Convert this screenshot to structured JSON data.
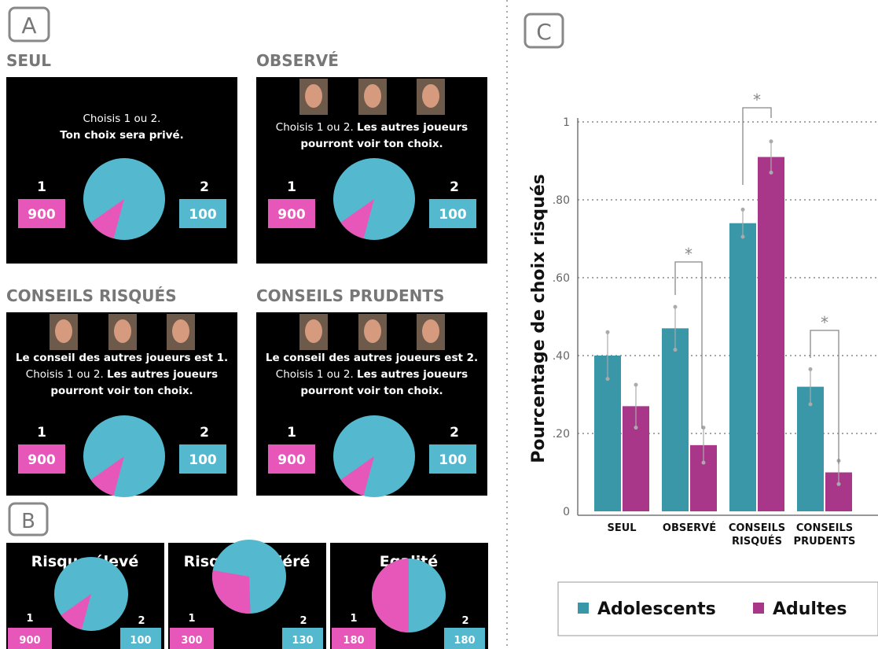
{
  "panel_labels": {
    "a": "A",
    "b": "B",
    "c": "C"
  },
  "screens": [
    {
      "title": "SEUL",
      "lines": [
        [
          {
            "text": "Choisis 1 ou 2.",
            "bold": false
          }
        ],
        [
          {
            "text": "Ton choix sera privé.",
            "bold": true
          }
        ]
      ],
      "left_label": "1",
      "left_value": 900,
      "right_label": "2",
      "right_value": 100
    },
    {
      "title": "OBSERVÉ",
      "lines": [
        [
          {
            "text": "Choisis 1 ou 2. ",
            "bold": false
          },
          {
            "text": "Les autres joueurs",
            "bold": true
          }
        ],
        [
          {
            "text": "pourront voir ton choix.",
            "bold": true
          }
        ]
      ],
      "left_label": "1",
      "left_value": 900,
      "right_label": "2",
      "right_value": 100
    },
    {
      "title": "CONSEILS RISQUÉS",
      "lines": [
        [
          {
            "text": "Le conseil des autres joueurs est 1.",
            "bold": true
          }
        ],
        [
          {
            "text": "Choisis 1 ou 2. ",
            "bold": false
          },
          {
            "text": "Les autres joueurs",
            "bold": true
          }
        ],
        [
          {
            "text": "pourront voir ton choix.",
            "bold": true
          }
        ]
      ],
      "left_label": "1",
      "left_value": 900,
      "right_label": "2",
      "right_value": 100
    },
    {
      "title": "CONSEILS PRUDENTS",
      "lines": [
        [
          {
            "text": "Le conseil des autres joueurs est 2.",
            "bold": true
          }
        ],
        [
          {
            "text": "Choisis 1 ou 2. ",
            "bold": false
          },
          {
            "text": "Les autres joueurs",
            "bold": true
          }
        ],
        [
          {
            "text": "pourront voir ton choix.",
            "bold": true
          }
        ]
      ],
      "left_label": "1",
      "left_value": 900,
      "right_label": "2",
      "right_value": 100
    }
  ],
  "risk_levels": [
    {
      "title": "Risque élevé",
      "left_label": "1",
      "left_value": 900,
      "right_label": "2",
      "right_value": 100
    },
    {
      "title": "Risque modéré",
      "left_label": "1",
      "left_value": 300,
      "right_label": "2",
      "right_value": 130
    },
    {
      "title": "Egalité",
      "left_label": "1",
      "left_value": 180,
      "right_label": "2",
      "right_value": 180
    }
  ],
  "chart_data": {
    "type": "bar",
    "y_label": "Pourcentage de choix risqués",
    "categories": [
      "SEUL",
      "OBSERVÉ",
      "CONSEILS RISQUÉS",
      "CONSEILS PRUDENTS"
    ],
    "series": [
      {
        "name": "Adolescents",
        "color": "#3a97a8",
        "values": [
          0.4,
          0.47,
          0.74,
          0.32
        ],
        "errors": [
          0.06,
          0.055,
          0.035,
          0.045
        ]
      },
      {
        "name": "Adultes",
        "color": "#a8378a",
        "values": [
          0.27,
          0.17,
          0.91,
          0.1
        ],
        "errors": [
          0.055,
          0.045,
          0.04,
          0.03
        ]
      }
    ],
    "ylim": [
      0,
      1
    ],
    "yticks": [
      0,
      {
        "value": 0.2,
        "label": ".20"
      },
      {
        "value": 0.4,
        "label": ".40"
      },
      {
        "value": 0.6,
        "label": ".60"
      },
      {
        "value": 0.8,
        "label": ".80"
      },
      1
    ],
    "grid": true,
    "annotations": [
      "*",
      "*",
      "*"
    ]
  }
}
